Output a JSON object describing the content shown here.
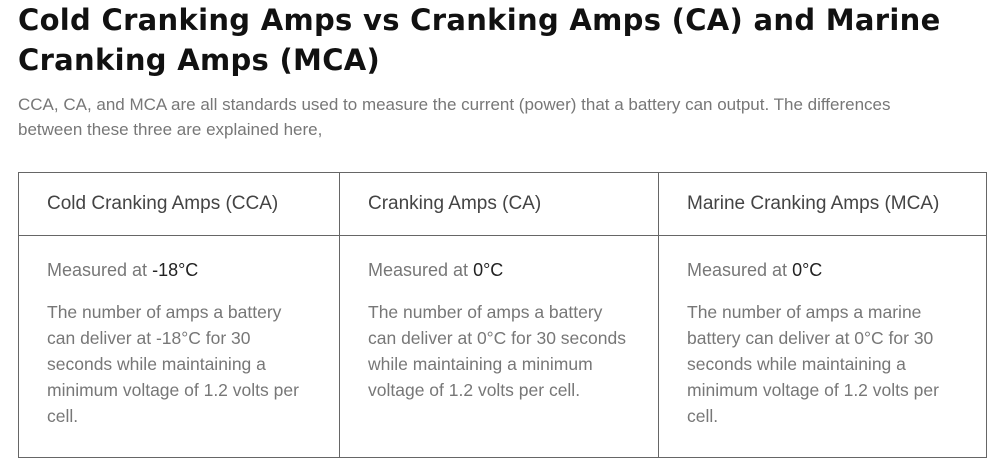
{
  "title": "Cold Cranking Amps vs Cranking Amps (CA) and Marine Cranking Amps (MCA)",
  "intro": "CCA, CA, and MCA are all standards used to measure the current (power) that a battery can output. The differences between these three are explained here,",
  "table": {
    "headers": [
      "Cold Cranking Amps (CCA)",
      "Cranking Amps (CA)",
      "Marine Cranking Amps (MCA)"
    ],
    "cells": [
      {
        "measured_label": "Measured at",
        "measured_value": "-18°C",
        "description": "The number of amps a battery can deliver at -18°C for 30 seconds while maintaining a minimum voltage of 1.2 volts per cell."
      },
      {
        "measured_label": "Measured at",
        "measured_value": "0°C",
        "description": "The number of amps a battery can deliver at 0°C for 30 seconds while maintaining a minimum voltage of 1.2 volts per cell."
      },
      {
        "measured_label": "Measured at",
        "measured_value": "0°C",
        "description": "The number of amps a marine battery can deliver at 0°C for 30 seconds while maintaining a minimum voltage of 1.2 volts per cell."
      }
    ]
  }
}
